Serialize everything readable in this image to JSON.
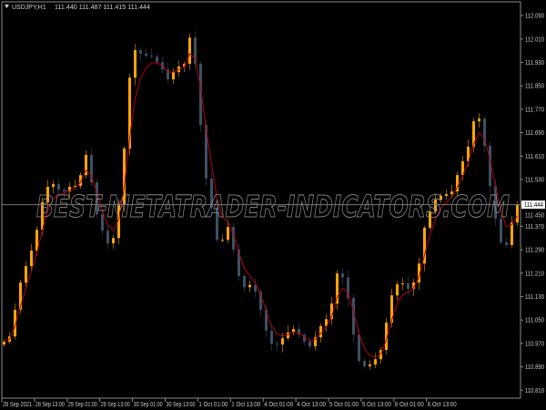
{
  "header": {
    "symbol": "USDJPY,H1",
    "ohlc": "111.440 111.487 111.415 111.444",
    "menu_icon": "triangle-down-icon"
  },
  "watermark": "BEST-METATRADER-INDICATORS.COM",
  "current_price_label": "111.444",
  "colors": {
    "background": "#000000",
    "bull": "#FFA500",
    "bear": "#3E5064",
    "ma_line": "#B00018",
    "grid_frame": "#8a8a8a",
    "price_line": "#777777"
  },
  "chart_data": {
    "type": "candlestick",
    "symbol": "USDJPY",
    "timeframe": "H1",
    "ylim": [
      110.783,
      112.137
    ],
    "y_ticks": [
      "112.090",
      "112.010",
      "111.930",
      "111.850",
      "111.770",
      "111.690",
      "111.610",
      "111.530",
      "111.450",
      "111.370",
      "111.290",
      "111.210",
      "111.130",
      "111.050",
      "110.970",
      "110.890",
      "110.810"
    ],
    "x_ticks": [
      "28 Sep 2021",
      "28 Sep 13:00",
      "29 Sep 01:00",
      "29 Sep 13:00",
      "30 Sep 01:00",
      "30 Sep 13:00",
      "1 Oct 01:00",
      "1 Oct 13:00",
      "4 Oct 01:00",
      "4 Oct 13:00",
      "5 Oct 01:00",
      "5 Oct 13:00",
      "6 Oct 01:00",
      "6 Oct 13:00"
    ],
    "closes": [
      110.976,
      110.994,
      111.085,
      111.178,
      111.234,
      111.287,
      111.358,
      111.452,
      111.505,
      111.514,
      111.495,
      111.489,
      111.505,
      111.508,
      111.545,
      111.614,
      111.52,
      111.411,
      111.355,
      111.312,
      111.33,
      111.443,
      111.636,
      111.878,
      111.972,
      111.96,
      111.953,
      111.95,
      111.931,
      111.906,
      111.872,
      111.897,
      111.916,
      111.925,
      112.015,
      111.925,
      111.716,
      111.533,
      111.433,
      111.324,
      111.324,
      111.368,
      111.29,
      111.2,
      111.162,
      111.17,
      111.147,
      111.085,
      111.013,
      110.969,
      110.966,
      110.988,
      111.007,
      111.019,
      111.0,
      110.976,
      110.96,
      110.991,
      111.029,
      111.053,
      111.106,
      111.209,
      111.195,
      111.125,
      111.0,
      110.91,
      110.892,
      110.898,
      110.916,
      110.948,
      111.041,
      111.134,
      111.172,
      111.175,
      111.156,
      111.178,
      111.243,
      111.365,
      111.421,
      111.461,
      111.474,
      111.48,
      111.489,
      111.545,
      111.592,
      111.642,
      111.729,
      111.738,
      111.645,
      111.508,
      111.396,
      111.315,
      111.306,
      111.383,
      111.444
    ],
    "current_price": 111.444
  }
}
